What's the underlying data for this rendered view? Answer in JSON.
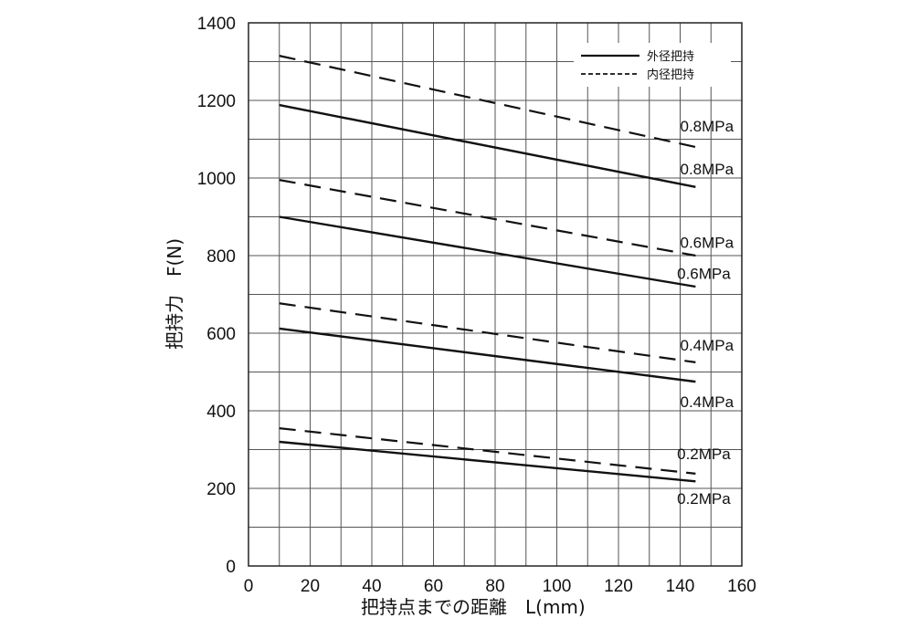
{
  "chart_data": {
    "type": "line",
    "xlabel": "把持点までの距離　L(mm)",
    "ylabel": "把持力　F(N)",
    "xlim": [
      0,
      160
    ],
    "ylim": [
      0,
      1400
    ],
    "x_ticks": [
      "0",
      "20",
      "40",
      "60",
      "80",
      "100",
      "120",
      "140",
      "160"
    ],
    "y_ticks": [
      "0",
      "200",
      "400",
      "600",
      "800",
      "1000",
      "1200",
      "1400"
    ],
    "grid": true,
    "legend_position": "top-right",
    "legend": [
      {
        "label": "外径把持",
        "style": "solid"
      },
      {
        "label": "内径把持",
        "style": "dashed"
      }
    ],
    "series": [
      {
        "legend": "内径把持",
        "pressure": "0.8MPa",
        "style": "dashed",
        "x": [
          10,
          145
        ],
        "y": [
          1315,
          1080
        ]
      },
      {
        "legend": "外径把持",
        "pressure": "0.8MPa",
        "style": "solid",
        "x": [
          10,
          145
        ],
        "y": [
          1188,
          977
        ]
      },
      {
        "legend": "内径把持",
        "pressure": "0.6MPa",
        "style": "dashed",
        "x": [
          10,
          145
        ],
        "y": [
          995,
          800
        ]
      },
      {
        "legend": "外径把持",
        "pressure": "0.6MPa",
        "style": "solid",
        "x": [
          10,
          145
        ],
        "y": [
          900,
          720
        ]
      },
      {
        "legend": "内径把持",
        "pressure": "0.4MPa",
        "style": "dashed",
        "x": [
          10,
          145
        ],
        "y": [
          677,
          525
        ]
      },
      {
        "legend": "外径把持",
        "pressure": "0.4MPa",
        "style": "solid",
        "x": [
          10,
          145
        ],
        "y": [
          612,
          475
        ]
      },
      {
        "legend": "内径把持",
        "pressure": "0.2MPa",
        "style": "dashed",
        "x": [
          10,
          145
        ],
        "y": [
          355,
          238
        ]
      },
      {
        "legend": "外径把持",
        "pressure": "0.2MPa",
        "style": "solid",
        "x": [
          10,
          145
        ],
        "y": [
          320,
          218
        ]
      }
    ],
    "labels": [
      {
        "text": "0.8MPa",
        "x": 140,
        "y": 1120
      },
      {
        "text": "0.8MPa",
        "x": 140,
        "y": 1010
      },
      {
        "text": "0.6MPa",
        "x": 140,
        "y": 820
      },
      {
        "text": "0.6MPa",
        "x": 139,
        "y": 740
      },
      {
        "text": "0.4MPa",
        "x": 140,
        "y": 555
      },
      {
        "text": "0.4MPa",
        "x": 140,
        "y": 410
      },
      {
        "text": "0.2MPa",
        "x": 139,
        "y": 275
      },
      {
        "text": "0.2MPa",
        "x": 139,
        "y": 160
      }
    ]
  }
}
